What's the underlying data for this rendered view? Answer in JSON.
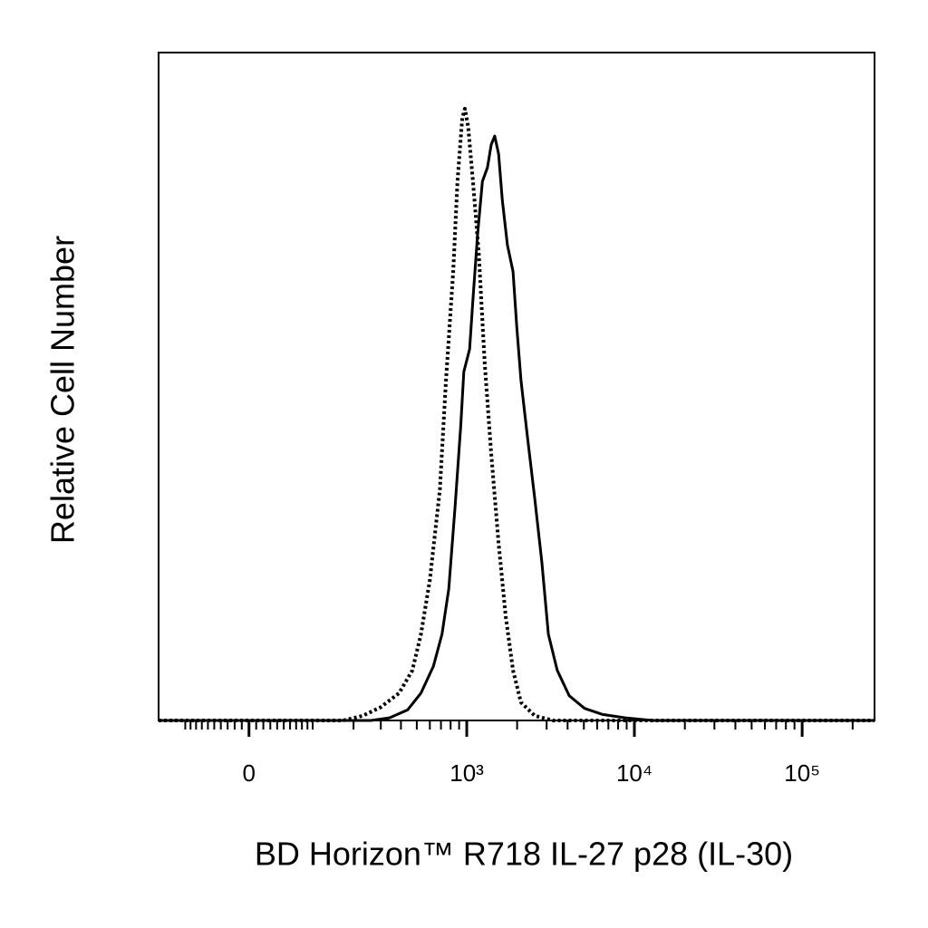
{
  "chart_data": {
    "type": "line",
    "xlabel": "BD Horizon™ R718 IL-27 p28 (IL-30)",
    "ylabel": "Relative Cell Number",
    "xscale": "biexponential",
    "xlim": [
      -160,
      270000
    ],
    "xticks": [
      0,
      {
        "value": 1000,
        "label": "10³"
      },
      {
        "value": 10000,
        "label": "10⁴"
      },
      {
        "value": 100000,
        "label": "10⁵"
      }
    ],
    "xminorticks": [
      -100,
      -90,
      -80,
      -70,
      -60,
      -50,
      -40,
      -30,
      -20,
      -10,
      10,
      20,
      30,
      40,
      50,
      60,
      70,
      80,
      90,
      100,
      200,
      300,
      400,
      500,
      600,
      700,
      800,
      900,
      2000,
      3000,
      4000,
      5000,
      6000,
      7000,
      8000,
      9000,
      20000,
      30000,
      40000,
      50000,
      60000,
      70000,
      80000,
      90000,
      200000
    ],
    "ylim": [
      0,
      100
    ],
    "series": [
      {
        "color": "#000000",
        "style": "dotted",
        "x": [
          -160,
          170,
          230,
          300,
          390,
          470,
          530,
          600,
          690,
          750,
          830,
          880,
          940,
          975,
          1020,
          1090,
          1180,
          1280,
          1400,
          1550,
          1710,
          1890,
          2110,
          2550,
          3270,
          270000
        ],
        "values": [
          0,
          0,
          0.7,
          2.0,
          4.1,
          7.5,
          12.9,
          21.0,
          34.6,
          50.9,
          67.2,
          80.7,
          90.2,
          91.6,
          88.9,
          80.7,
          69.9,
          53.6,
          40.0,
          26.5,
          15.6,
          7.5,
          2.7,
          0.7,
          0,
          0
        ]
      },
      {
        "color": "#000000",
        "style": "solid",
        "x": [
          -160,
          260,
          340,
          440,
          530,
          630,
          710,
          780,
          850,
          920,
          960,
          1040,
          1090,
          1160,
          1240,
          1330,
          1400,
          1470,
          1550,
          1630,
          1750,
          1890,
          1990,
          2110,
          2300,
          2550,
          2810,
          3070,
          3470,
          4090,
          5050,
          6480,
          8840,
          12830,
          270000
        ],
        "values": [
          0,
          0,
          0.4,
          1.6,
          4.1,
          8.1,
          12.9,
          19.7,
          31.9,
          44.1,
          52.2,
          55.6,
          63.1,
          72.6,
          80.7,
          82.8,
          86.2,
          87.5,
          84.8,
          78.0,
          71.2,
          67.2,
          59.0,
          50.9,
          42.7,
          33.2,
          23.7,
          12.9,
          7.5,
          3.7,
          1.8,
          0.9,
          0.4,
          0,
          0
        ]
      }
    ]
  }
}
